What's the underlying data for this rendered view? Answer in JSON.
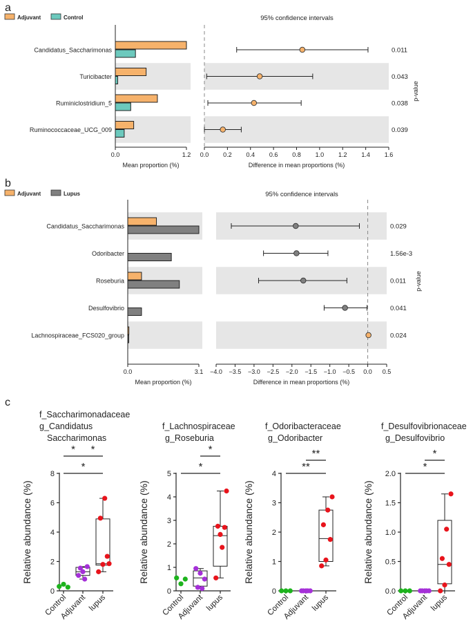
{
  "chart_data": [
    {
      "panel": "a",
      "type": "bar",
      "subtype": "extended-error-bar",
      "legend": [
        {
          "name": "Adjuvant",
          "color": "#F6B26B"
        },
        {
          "name": "Control",
          "color": "#6CC9BD"
        }
      ],
      "categories": [
        "Candidatus_Saccharimonas",
        "Turicibacter",
        "Ruminiclostridium_5",
        "Ruminococcaceae_UCG_009"
      ],
      "series": [
        {
          "name": "Adjuvant",
          "values": [
            1.2,
            0.52,
            0.71,
            0.31
          ]
        },
        {
          "name": "Control",
          "values": [
            0.34,
            0.04,
            0.26,
            0.15
          ]
        }
      ],
      "bar_xlim": [
        0,
        1.2
      ],
      "bar_ticks": [
        "0.0",
        "1.2"
      ],
      "bar_xlabel": "Mean proportion (%)",
      "ci_title": "95% confidence intervals",
      "ci_xlabel": "Difference in mean proportions (%)",
      "ci_xlim": [
        0,
        1.6
      ],
      "ci_ticks": [
        "0.0",
        "0.2",
        "0.4",
        "0.6",
        "0.8",
        "1.0",
        "1.2",
        "1.4",
        "1.6"
      ],
      "ci": [
        {
          "mean": 0.85,
          "low": 0.28,
          "high": 1.42,
          "color": "#F6B26B"
        },
        {
          "mean": 0.48,
          "low": 0.02,
          "high": 0.94,
          "color": "#F6B26B"
        },
        {
          "mean": 0.43,
          "low": 0.03,
          "high": 0.84,
          "color": "#F6B26B"
        },
        {
          "mean": 0.16,
          "low": 0.0,
          "high": 0.32,
          "color": "#F6B26B"
        }
      ],
      "pvalues": [
        "0.011",
        "0.043",
        "0.038",
        "0.039"
      ],
      "pvalue_label": "p-value"
    },
    {
      "panel": "b",
      "type": "bar",
      "subtype": "extended-error-bar",
      "legend": [
        {
          "name": "Adjuvant",
          "color": "#F6B26B"
        },
        {
          "name": "Lupus",
          "color": "#808080"
        }
      ],
      "categories": [
        "Candidatus_Saccharimonas",
        "Odoribacter",
        "Roseburia",
        "Desulfovibrio",
        "Lachnospiraceae_FCS020_group"
      ],
      "series": [
        {
          "name": "Adjuvant",
          "values": [
            1.25,
            0.0,
            0.6,
            0.0,
            0.05
          ]
        },
        {
          "name": "Lupus",
          "values": [
            3.1,
            1.9,
            2.25,
            0.6,
            0.04
          ]
        }
      ],
      "bar_xlim": [
        0,
        3.1
      ],
      "bar_ticks": [
        "0.0",
        "3.1"
      ],
      "bar_xlabel": "Mean proportion (%)",
      "ci_title": "95% confidence intervals",
      "ci_xlabel": "Difference in mean proportions (%)",
      "ci_xlim": [
        -4.0,
        0.5
      ],
      "ci_ticks": [
        "−4.0",
        "−3.5",
        "−3.0",
        "−2.5",
        "−2.0",
        "−1.5",
        "−1.0",
        "−0.5",
        "0.0",
        "0.5"
      ],
      "ci": [
        {
          "mean": -1.9,
          "low": -3.6,
          "high": -0.22,
          "color": "#808080"
        },
        {
          "mean": -1.88,
          "low": -2.75,
          "high": -1.05,
          "color": "#808080"
        },
        {
          "mean": -1.7,
          "low": -2.88,
          "high": -0.55,
          "color": "#808080"
        },
        {
          "mean": -0.6,
          "low": -1.15,
          "high": -0.02,
          "color": "#808080"
        },
        {
          "mean": 0.02,
          "low": 0.02,
          "high": 0.02,
          "color": "#F6B26B"
        }
      ],
      "pvalues": [
        "0.029",
        "1.56e-3",
        "0.011",
        "0.041",
        "0.024"
      ],
      "pvalue_label": "p-value"
    },
    {
      "panel": "c",
      "type": "scatter",
      "subtype": "box-with-points",
      "ylabel": "Relative abundance (%)",
      "groups": [
        "Control",
        "Adjuvant",
        "lupus"
      ],
      "group_colors": [
        "#1DB31D",
        "#A530D8",
        "#E8141C"
      ],
      "plots": [
        {
          "title_lines": [
            "f_Saccharimonadaceae",
            "g_Candidatus",
            "Saccharimonas"
          ],
          "ylim": [
            0,
            8
          ],
          "yticks": [
            "0",
            "2",
            "4",
            "6",
            "8"
          ],
          "points": [
            [
              0.3,
              0.45,
              0.25
            ],
            [
              1.05,
              1.3,
              1.65,
              1.55,
              0.8
            ],
            [
              1.3,
              1.8,
              2.35,
              4.95,
              6.3,
              1.85
            ]
          ],
          "boxes": [
            null,
            {
              "q1": 1.05,
              "median": 1.3,
              "q3": 1.6,
              "min": 0.8,
              "max": 1.65
            },
            {
              "q1": 1.75,
              "median": 1.85,
              "q3": 4.9,
              "min": 1.3,
              "max": 6.3
            }
          ],
          "brackets": [
            {
              "from": 0,
              "to": 1,
              "label": "*"
            },
            {
              "from": 1,
              "to": 2,
              "label": "*"
            },
            {
              "from": 0,
              "to": 2,
              "label": "*"
            }
          ]
        },
        {
          "title_lines": [
            "f_Lachnospiraceae",
            "g_Roseburia"
          ],
          "ylim": [
            0,
            5
          ],
          "yticks": [
            "0",
            "1",
            "2",
            "3",
            "4",
            "5"
          ],
          "points": [
            [
              0.55,
              0.3,
              0.5
            ],
            [
              0.95,
              0.75,
              0.5,
              0.15,
              0.1
            ],
            [
              0.55,
              2.4,
              2.7,
              2.75,
              1.85,
              4.25
            ]
          ],
          "boxes": [
            null,
            {
              "q1": 0.2,
              "median": 0.55,
              "q3": 0.85,
              "min": 0.1,
              "max": 0.95
            },
            {
              "q1": 1.05,
              "median": 2.35,
              "q3": 2.75,
              "min": 0.55,
              "max": 4.25
            }
          ],
          "brackets": [
            {
              "from": 1,
              "to": 2,
              "label": "*"
            },
            {
              "from": 0,
              "to": 2,
              "label": "*"
            }
          ]
        },
        {
          "title_lines": [
            "f_Odoribacteraceae",
            "g_Odoribacter"
          ],
          "ylim": [
            0,
            4
          ],
          "yticks": [
            "0",
            "1",
            "2",
            "3",
            "4"
          ],
          "points": [
            [
              0.0,
              0.0,
              0.0
            ],
            [
              0.0,
              0.0,
              0.0,
              0.0,
              0.0
            ],
            [
              0.85,
              1.05,
              1.75,
              2.25,
              2.75,
              3.2
            ]
          ],
          "boxes": [
            null,
            null,
            {
              "q1": 1.0,
              "median": 1.78,
              "q3": 2.75,
              "min": 0.85,
              "max": 3.2
            }
          ],
          "brackets": [
            {
              "from": 1,
              "to": 2,
              "label": "**"
            },
            {
              "from": 0,
              "to": 2,
              "label": "**"
            }
          ]
        },
        {
          "title_lines": [
            "f_Desulfovibrionaceae",
            "g_Desulfovibrio"
          ],
          "ylim": [
            0,
            2.0
          ],
          "yticks": [
            "0.0",
            "0.5",
            "1.0",
            "1.5",
            "2.0"
          ],
          "points": [
            [
              0.0,
              0.0,
              0.0
            ],
            [
              0.0,
              0.0,
              0.0,
              0.0,
              0.0
            ],
            [
              0.0,
              0.1,
              0.45,
              0.55,
              1.05,
              1.65
            ]
          ],
          "boxes": [
            null,
            null,
            {
              "q1": 0.12,
              "median": 0.45,
              "q3": 1.2,
              "min": 0.0,
              "max": 1.65
            }
          ],
          "brackets": [
            {
              "from": 1,
              "to": 2,
              "label": "*"
            },
            {
              "from": 0,
              "to": 2,
              "label": "*"
            }
          ]
        }
      ]
    }
  ],
  "panel_labels": [
    "a",
    "b",
    "c"
  ]
}
